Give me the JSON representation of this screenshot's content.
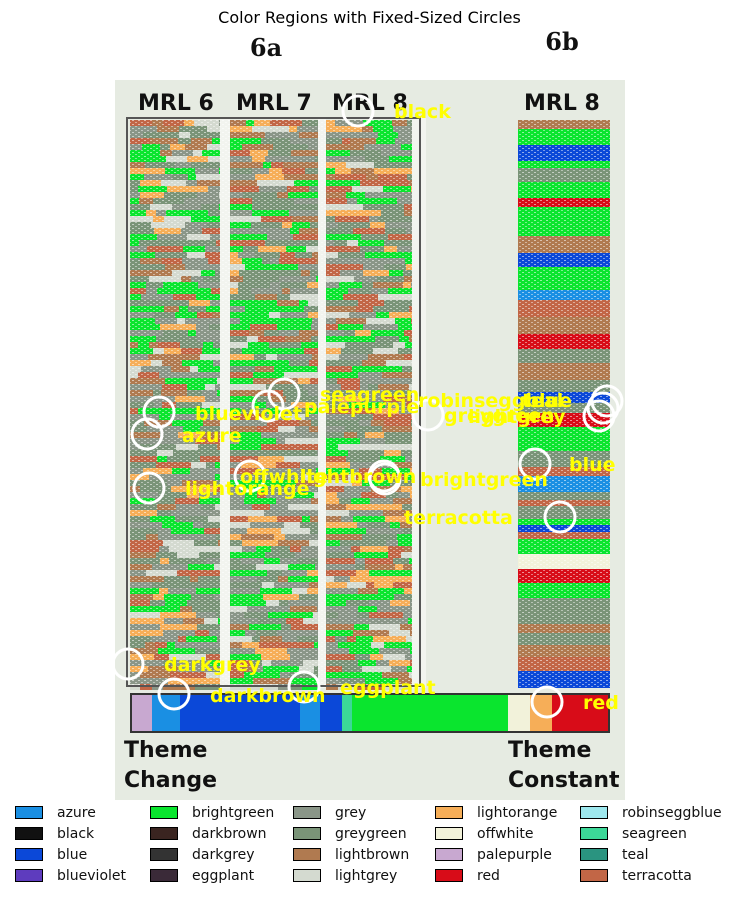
{
  "chart_data": {
    "type": "annotated-image",
    "title": "Color Regions with Fixed-Sized Circles",
    "image_text": {
      "panel_a": "6a",
      "panel_b": "6b",
      "columns": [
        "MRL 6",
        "MRL 7",
        "MRL 8",
        "MRL 8"
      ],
      "bottom_left": [
        "Theme",
        "Change"
      ],
      "bottom_right": [
        "Theme",
        "Constant"
      ]
    },
    "annotations": [
      {
        "label": "black"
      },
      {
        "label": "seagreen"
      },
      {
        "label": "robinseggblue"
      },
      {
        "label": "teal"
      },
      {
        "label": "blueviolet"
      },
      {
        "label": "palepurple"
      },
      {
        "label": "greygreen"
      },
      {
        "label": "lightgrey"
      },
      {
        "label": "azure"
      },
      {
        "label": "blue"
      },
      {
        "label": "offwhite"
      },
      {
        "label": "lightbrown"
      },
      {
        "label": "brightgreen"
      },
      {
        "label": "lightorange"
      },
      {
        "label": "terracotta"
      },
      {
        "label": "darkgrey"
      },
      {
        "label": "darkbrown"
      },
      {
        "label": "eggplant"
      },
      {
        "label": "red"
      }
    ],
    "legend": [
      {
        "name": "azure",
        "color": "#1a8fe3"
      },
      {
        "name": "black",
        "color": "#111111"
      },
      {
        "name": "blue",
        "color": "#0b48d8"
      },
      {
        "name": "blueviolet",
        "color": "#5e3cbe"
      },
      {
        "name": "brightgreen",
        "color": "#0ae52e"
      },
      {
        "name": "darkbrown",
        "color": "#3a2420"
      },
      {
        "name": "darkgrey",
        "color": "#333333"
      },
      {
        "name": "eggplant",
        "color": "#3a2a38"
      },
      {
        "name": "grey",
        "color": "#8a9688"
      },
      {
        "name": "greygreen",
        "color": "#7a9478"
      },
      {
        "name": "lightbrown",
        "color": "#b07a50"
      },
      {
        "name": "lightgrey",
        "color": "#d4dad0"
      },
      {
        "name": "lightorange",
        "color": "#f6ae58"
      },
      {
        "name": "offwhite",
        "color": "#f2f2da"
      },
      {
        "name": "palepurple",
        "color": "#c8a8d0"
      },
      {
        "name": "red",
        "color": "#d80c18"
      },
      {
        "name": "robinseggblue",
        "color": "#9ee8ee"
      },
      {
        "name": "seagreen",
        "color": "#3cd898"
      },
      {
        "name": "teal",
        "color": "#2a9480"
      },
      {
        "name": "terracotta",
        "color": "#c26646"
      }
    ]
  }
}
